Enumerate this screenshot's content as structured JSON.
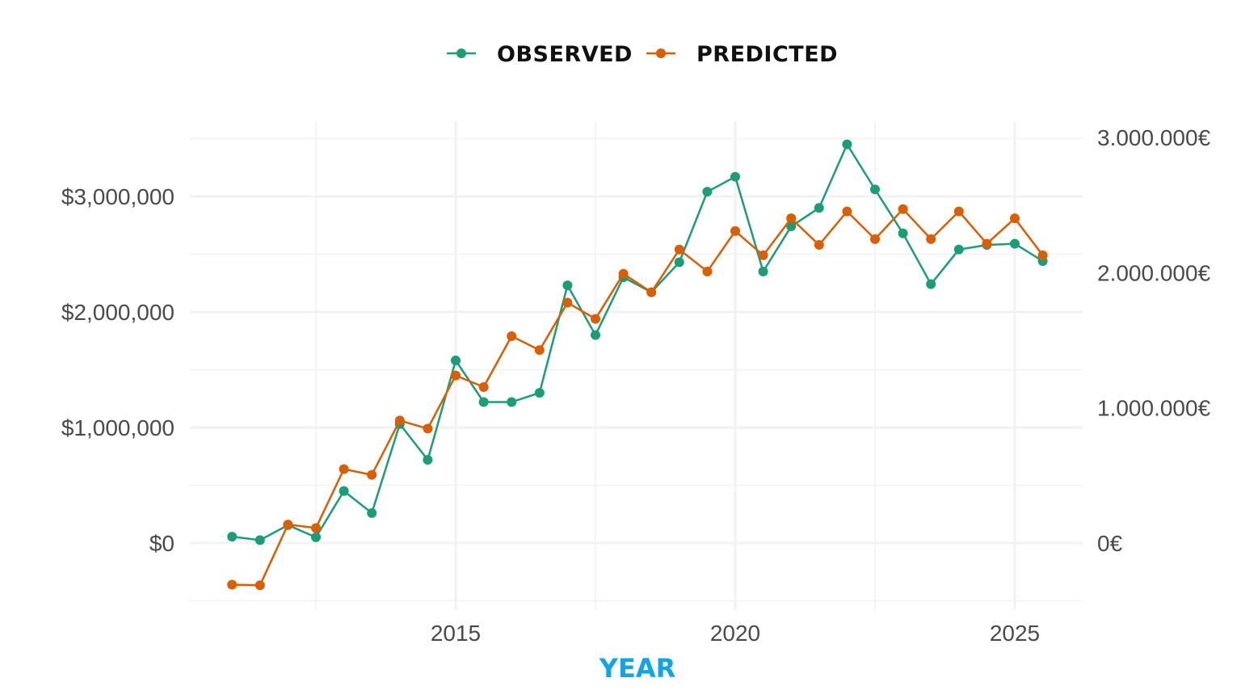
{
  "chart_data": {
    "type": "line",
    "title": "",
    "xlabel": "YEAR",
    "ylabel": "",
    "xlim": [
      2010.75,
      2026.25
    ],
    "ylim": [
      -600000,
      3600000
    ],
    "x_ticks": [
      2015,
      2020,
      2025
    ],
    "y_ticks": [
      0,
      1000000,
      2000000,
      3000000
    ],
    "y_tick_labels": [
      "$0",
      "$1,000,000",
      "$2,000,000",
      "$3,000,000"
    ],
    "y2_ticks": [
      0,
      1000000,
      2000000,
      3000000
    ],
    "y2_tick_labels": [
      "0€",
      "1.000.000€",
      "2.000.000€",
      "3.000.000€"
    ],
    "y2_scale": 1.17,
    "grid": true,
    "legend_position": "top",
    "x": [
      2011,
      2011.5,
      2012,
      2012.5,
      2013,
      2013.5,
      2014,
      2014.5,
      2015,
      2015.5,
      2016,
      2016.5,
      2017,
      2017.5,
      2018,
      2018.5,
      2019,
      2019.5,
      2020,
      2020.5,
      2021,
      2021.5,
      2022,
      2022.5,
      2023,
      2023.5,
      2024,
      2024.5,
      2025,
      2025.5
    ],
    "series": [
      {
        "name": "OBSERVED",
        "color": "#1b9e77",
        "values": [
          55000,
          25000,
          155000,
          50000,
          450000,
          260000,
          1030000,
          720000,
          1580000,
          1220000,
          1220000,
          1300000,
          2230000,
          1800000,
          2300000,
          2170000,
          2430000,
          3040000,
          3170000,
          2350000,
          2740000,
          2900000,
          3450000,
          3060000,
          2680000,
          2240000,
          2540000,
          2580000,
          2590000,
          2440000
        ]
      },
      {
        "name": "PREDICTED",
        "color": "#d95f02",
        "values": [
          -360000,
          -365000,
          160000,
          130000,
          640000,
          590000,
          1060000,
          990000,
          1450000,
          1350000,
          1790000,
          1670000,
          2080000,
          1940000,
          2330000,
          2170000,
          2540000,
          2350000,
          2700000,
          2490000,
          2810000,
          2580000,
          2870000,
          2630000,
          2890000,
          2630000,
          2870000,
          2590000,
          2810000,
          2490000
        ]
      }
    ]
  },
  "colors": {
    "axis_title": "#10a5e6",
    "grid": "#f2f2f2",
    "tick_text": "#4a4a4a"
  }
}
